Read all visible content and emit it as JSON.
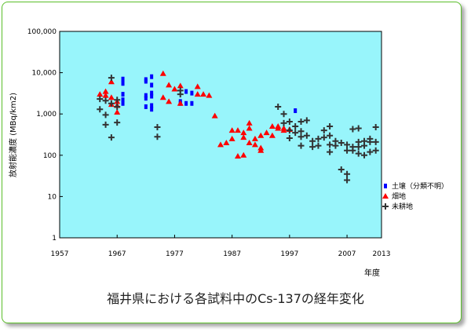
{
  "caption": "福井県における各試料中のCs-137の経年変化",
  "colors": {
    "plot_bg": "#98f5fb",
    "soil": "#0000ff",
    "farmland": "#ff0000",
    "unfarmed": "#333333",
    "frame": "#5bbf2a"
  },
  "chart_data": {
    "type": "scatter",
    "title": "福井県における各試料中のCs-137の経年変化",
    "xlabel": "年度",
    "ylabel": "放射能濃度 (MBq/km2)",
    "xlim": [
      1957,
      2013
    ],
    "ylim": [
      1,
      100000
    ],
    "yscale": "log",
    "x_ticks": [
      1957,
      1967,
      1977,
      1987,
      1997,
      2007,
      2013
    ],
    "y_ticks": [
      1,
      10,
      100,
      1000,
      10000,
      100000
    ],
    "y_tick_labels": [
      "1",
      "10",
      "100",
      "1,000",
      "10,000",
      "100,000"
    ],
    "grid": false,
    "legend_position": "right",
    "series": [
      {
        "name": "土壌（分類不明）",
        "marker": "square",
        "color": "#0000ff",
        "points": [
          [
            1968,
            7000
          ],
          [
            1968,
            5500
          ],
          [
            1968,
            3000
          ],
          [
            1968,
            2200
          ],
          [
            1968,
            1800
          ],
          [
            1972,
            6800
          ],
          [
            1972,
            6200
          ],
          [
            1972,
            2800
          ],
          [
            1972,
            2400
          ],
          [
            1972,
            1500
          ],
          [
            1973,
            8000
          ],
          [
            1973,
            5000
          ],
          [
            1973,
            3200
          ],
          [
            1973,
            2700
          ],
          [
            1973,
            1600
          ],
          [
            1973,
            1300
          ],
          [
            1978,
            2000
          ],
          [
            1978,
            1800
          ],
          [
            1979,
            3500
          ],
          [
            1979,
            1800
          ],
          [
            1980,
            3200
          ],
          [
            1980,
            1800
          ],
          [
            1998,
            1200
          ]
        ]
      },
      {
        "name": "畑地",
        "marker": "triangle",
        "color": "#ff0000",
        "points": [
          [
            1964,
            3000
          ],
          [
            1965,
            3500
          ],
          [
            1965,
            2800
          ],
          [
            1966,
            6000
          ],
          [
            1966,
            2500
          ],
          [
            1966,
            1700
          ],
          [
            1967,
            2000
          ],
          [
            1967,
            1100
          ],
          [
            1967,
            1600
          ],
          [
            1975,
            9500
          ],
          [
            1975,
            2500
          ],
          [
            1976,
            5000
          ],
          [
            1976,
            2000
          ],
          [
            1977,
            4000
          ],
          [
            1978,
            1800
          ],
          [
            1978,
            4800
          ],
          [
            1981,
            4600
          ],
          [
            1981,
            3000
          ],
          [
            1982,
            3000
          ],
          [
            1983,
            2800
          ],
          [
            1984,
            900
          ],
          [
            1985,
            180
          ],
          [
            1986,
            200
          ],
          [
            1987,
            400
          ],
          [
            1987,
            250
          ],
          [
            1988,
            95
          ],
          [
            1988,
            400
          ],
          [
            1989,
            270
          ],
          [
            1989,
            100
          ],
          [
            1989,
            350
          ],
          [
            1990,
            450
          ],
          [
            1990,
            600
          ],
          [
            1990,
            200
          ],
          [
            1991,
            250
          ],
          [
            1991,
            180
          ],
          [
            1992,
            300
          ],
          [
            1992,
            150
          ],
          [
            1992,
            130
          ],
          [
            1993,
            350
          ],
          [
            1994,
            500
          ],
          [
            1994,
            300
          ],
          [
            1995,
            500
          ],
          [
            1995,
            450
          ],
          [
            1996,
            450
          ],
          [
            1996,
            400
          ],
          [
            1997,
            420
          ]
        ]
      },
      {
        "name": "未耕地",
        "marker": "plus",
        "color": "#333333",
        "points": [
          [
            1964,
            2300
          ],
          [
            1964,
            1300
          ],
          [
            1965,
            2100
          ],
          [
            1965,
            950
          ],
          [
            1965,
            550
          ],
          [
            1966,
            7500
          ],
          [
            1966,
            1800
          ],
          [
            1966,
            270
          ],
          [
            1967,
            2200
          ],
          [
            1967,
            1500
          ],
          [
            1967,
            620
          ],
          [
            1974,
            480
          ],
          [
            1974,
            280
          ],
          [
            1978,
            3700
          ],
          [
            1978,
            3000
          ],
          [
            1995,
            1500
          ],
          [
            1996,
            1000
          ],
          [
            1996,
            600
          ],
          [
            1997,
            650
          ],
          [
            1997,
            400
          ],
          [
            1997,
            260
          ],
          [
            1998,
            500
          ],
          [
            1998,
            350
          ],
          [
            1999,
            650
          ],
          [
            1999,
            380
          ],
          [
            1999,
            280
          ],
          [
            1999,
            170
          ],
          [
            2000,
            700
          ],
          [
            2000,
            300
          ],
          [
            2001,
            220
          ],
          [
            2001,
            160
          ],
          [
            2002,
            250
          ],
          [
            2002,
            170
          ],
          [
            2003,
            400
          ],
          [
            2003,
            270
          ],
          [
            2004,
            300
          ],
          [
            2004,
            500
          ],
          [
            2004,
            180
          ],
          [
            2004,
            120
          ],
          [
            2005,
            220
          ],
          [
            2005,
            170
          ],
          [
            2006,
            200
          ],
          [
            2006,
            45
          ],
          [
            2007,
            180
          ],
          [
            2007,
            130
          ],
          [
            2007,
            35
          ],
          [
            2007,
            25
          ],
          [
            2008,
            160
          ],
          [
            2008,
            130
          ],
          [
            2008,
            430
          ],
          [
            2009,
            160
          ],
          [
            2009,
            450
          ],
          [
            2009,
            210
          ],
          [
            2009,
            110
          ],
          [
            2010,
            170
          ],
          [
            2010,
            220
          ],
          [
            2010,
            100
          ],
          [
            2011,
            250
          ],
          [
            2011,
            210
          ],
          [
            2011,
            120
          ],
          [
            2012,
            210
          ],
          [
            2012,
            480
          ],
          [
            2012,
            130
          ]
        ]
      }
    ]
  }
}
